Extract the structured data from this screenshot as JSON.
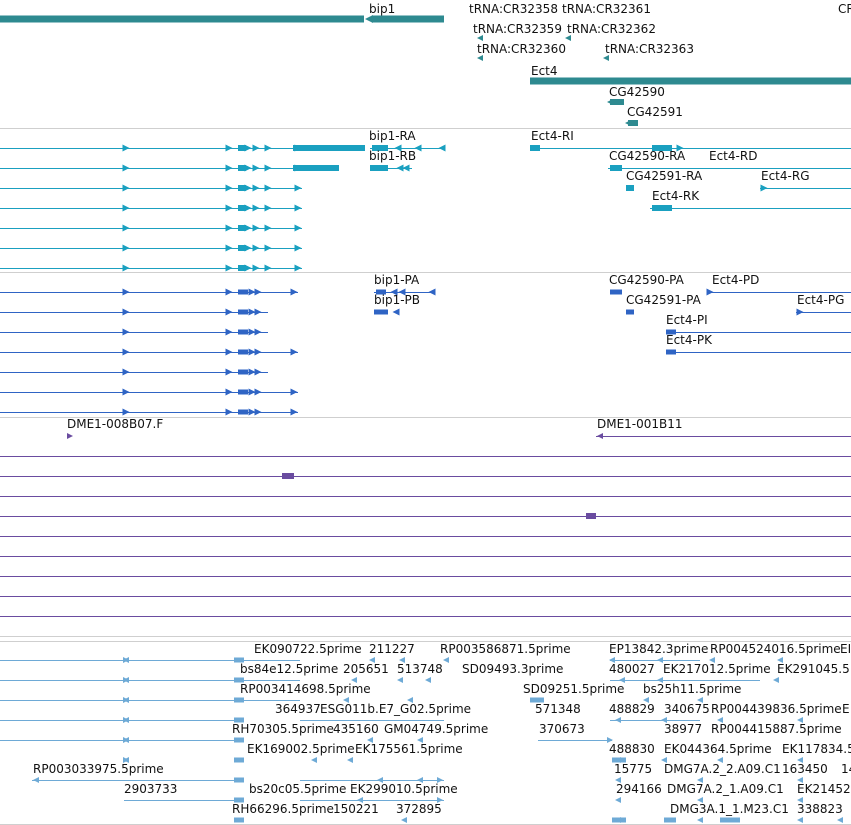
{
  "colors": {
    "gene": "#2e8a90",
    "transcript": "#1aa0c0",
    "cds": "#2f64c4",
    "clone": "#6a4ca0",
    "est": "#6eaad6",
    "divider": "#cfcfcf"
  },
  "tracks": {
    "genes": {
      "items": [
        {
          "label": "bip1"
        },
        {
          "label": "tRNA:CR32358"
        },
        {
          "label": "tRNA:CR32361"
        },
        {
          "label": "CR"
        },
        {
          "label": "tRNA:CR32359"
        },
        {
          "label": "tRNA:CR32362"
        },
        {
          "label": "tRNA:CR32360"
        },
        {
          "label": "tRNA:CR32363"
        },
        {
          "label": "Ect4"
        },
        {
          "label": "CG42590"
        },
        {
          "label": "CG42591"
        }
      ]
    },
    "transcripts": {
      "items": [
        {
          "label": "bip1-RA"
        },
        {
          "label": "Ect4-RI"
        },
        {
          "label": "bip1-RB"
        },
        {
          "label": "CG42590-RA"
        },
        {
          "label": "Ect4-RD"
        },
        {
          "label": "CG42591-RA"
        },
        {
          "label": "Ect4-RG"
        },
        {
          "label": "Ect4-RK"
        }
      ]
    },
    "cds": {
      "items": [
        {
          "label": "bip1-PA"
        },
        {
          "label": "CG42590-PA"
        },
        {
          "label": "Ect4-PD"
        },
        {
          "label": "bip1-PB"
        },
        {
          "label": "CG42591-PA"
        },
        {
          "label": "Ect4-PG"
        },
        {
          "label": "Ect4-PI"
        },
        {
          "label": "Ect4-PK"
        }
      ]
    },
    "clones": {
      "items": [
        {
          "label": "DME1-008B07.F"
        },
        {
          "label": "DME1-001B11"
        }
      ]
    },
    "ests": {
      "items": [
        {
          "label": "EK090722.5prime"
        },
        {
          "label": "211227"
        },
        {
          "label": "RP003586871.5prime"
        },
        {
          "label": "EP13842.3prime"
        },
        {
          "label": "RP004524016.5prime"
        },
        {
          "label": "EI"
        },
        {
          "label": "bs84e12.5prime"
        },
        {
          "label": "205651"
        },
        {
          "label": "513748"
        },
        {
          "label": "SD09493.3prime"
        },
        {
          "label": "480027"
        },
        {
          "label": "EK217012.5prime"
        },
        {
          "label": "EK291045.5"
        },
        {
          "label": "RP003414698.5prime"
        },
        {
          "label": "SD09251.5prime"
        },
        {
          "label": "bs25h11.5prime"
        },
        {
          "label": "364937"
        },
        {
          "label": "ESG011b.E7_G02.5prime"
        },
        {
          "label": "571348"
        },
        {
          "label": "488829"
        },
        {
          "label": "340675"
        },
        {
          "label": "RP004439836.5prime"
        },
        {
          "label": "E"
        },
        {
          "label": "RH70305.5prime"
        },
        {
          "label": "435160"
        },
        {
          "label": "GM04749.5prime"
        },
        {
          "label": "370673"
        },
        {
          "label": "38977"
        },
        {
          "label": "RP004415887.5prime"
        },
        {
          "label": "EK169002.5prime"
        },
        {
          "label": "EK175561.5prime"
        },
        {
          "label": "488830"
        },
        {
          "label": "EK044364.5prime"
        },
        {
          "label": "EK117834.5"
        },
        {
          "label": "RP003033975.5prime"
        },
        {
          "label": "15775"
        },
        {
          "label": "DMG7A.2_2.A09.C1"
        },
        {
          "label": "163450"
        },
        {
          "label": "14"
        },
        {
          "label": "2903733"
        },
        {
          "label": "bs20c05.5prime"
        },
        {
          "label": "EK299010.5prime"
        },
        {
          "label": "294166"
        },
        {
          "label": "DMG7A.2_1.A09.C1"
        },
        {
          "label": "EK21452"
        },
        {
          "label": "RH66296.5prime"
        },
        {
          "label": "150221"
        },
        {
          "label": "372895"
        },
        {
          "label": "DMG3A.1_1.M23.C1"
        },
        {
          "label": "338823"
        }
      ]
    }
  }
}
